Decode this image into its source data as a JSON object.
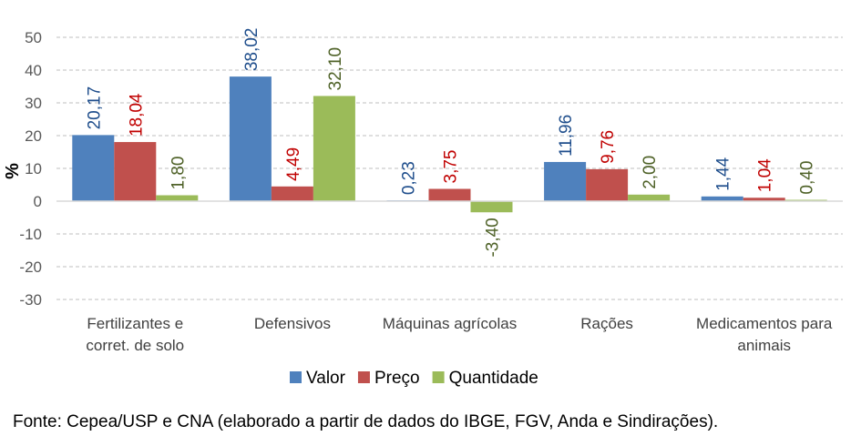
{
  "chart_data": {
    "type": "bar",
    "ylabel": "%",
    "ylim": [
      -30,
      50
    ],
    "yticks": [
      50,
      40,
      30,
      20,
      10,
      0,
      -10,
      -20,
      -30
    ],
    "grid": true,
    "legend_position": "bottom",
    "categories": [
      [
        "Fertilizantes e",
        "corret. de solo"
      ],
      [
        "Defensivos"
      ],
      [
        "Máquinas agrícolas"
      ],
      [
        "Rações"
      ],
      [
        "Medicamentos para",
        "animais"
      ]
    ],
    "series": [
      {
        "name": "Valor",
        "color": "#4F81BD",
        "label_color": "#1F4E8C",
        "values": [
          20.17,
          38.02,
          0.23,
          11.96,
          1.44
        ],
        "labels": [
          "20,17",
          "38,02",
          "0,23",
          "11,96",
          "1,44"
        ]
      },
      {
        "name": "Preço",
        "color": "#C0504D",
        "label_color": "#C00000",
        "values": [
          18.04,
          4.49,
          3.75,
          9.76,
          1.04
        ],
        "labels": [
          "18,04",
          "4,49",
          "3,75",
          "9,76",
          "1,04"
        ]
      },
      {
        "name": "Quantidade",
        "color": "#9BBB59",
        "label_color": "#4F6228",
        "values": [
          1.8,
          32.1,
          -3.4,
          2.0,
          0.4
        ],
        "labels": [
          "1,80",
          "32,10",
          "-3,40",
          "2,00",
          "0,40"
        ]
      }
    ]
  },
  "source": "Fonte: Cepea/USP e CNA (elaborado a partir de dados do IBGE, FGV, Anda e Sindirações)."
}
